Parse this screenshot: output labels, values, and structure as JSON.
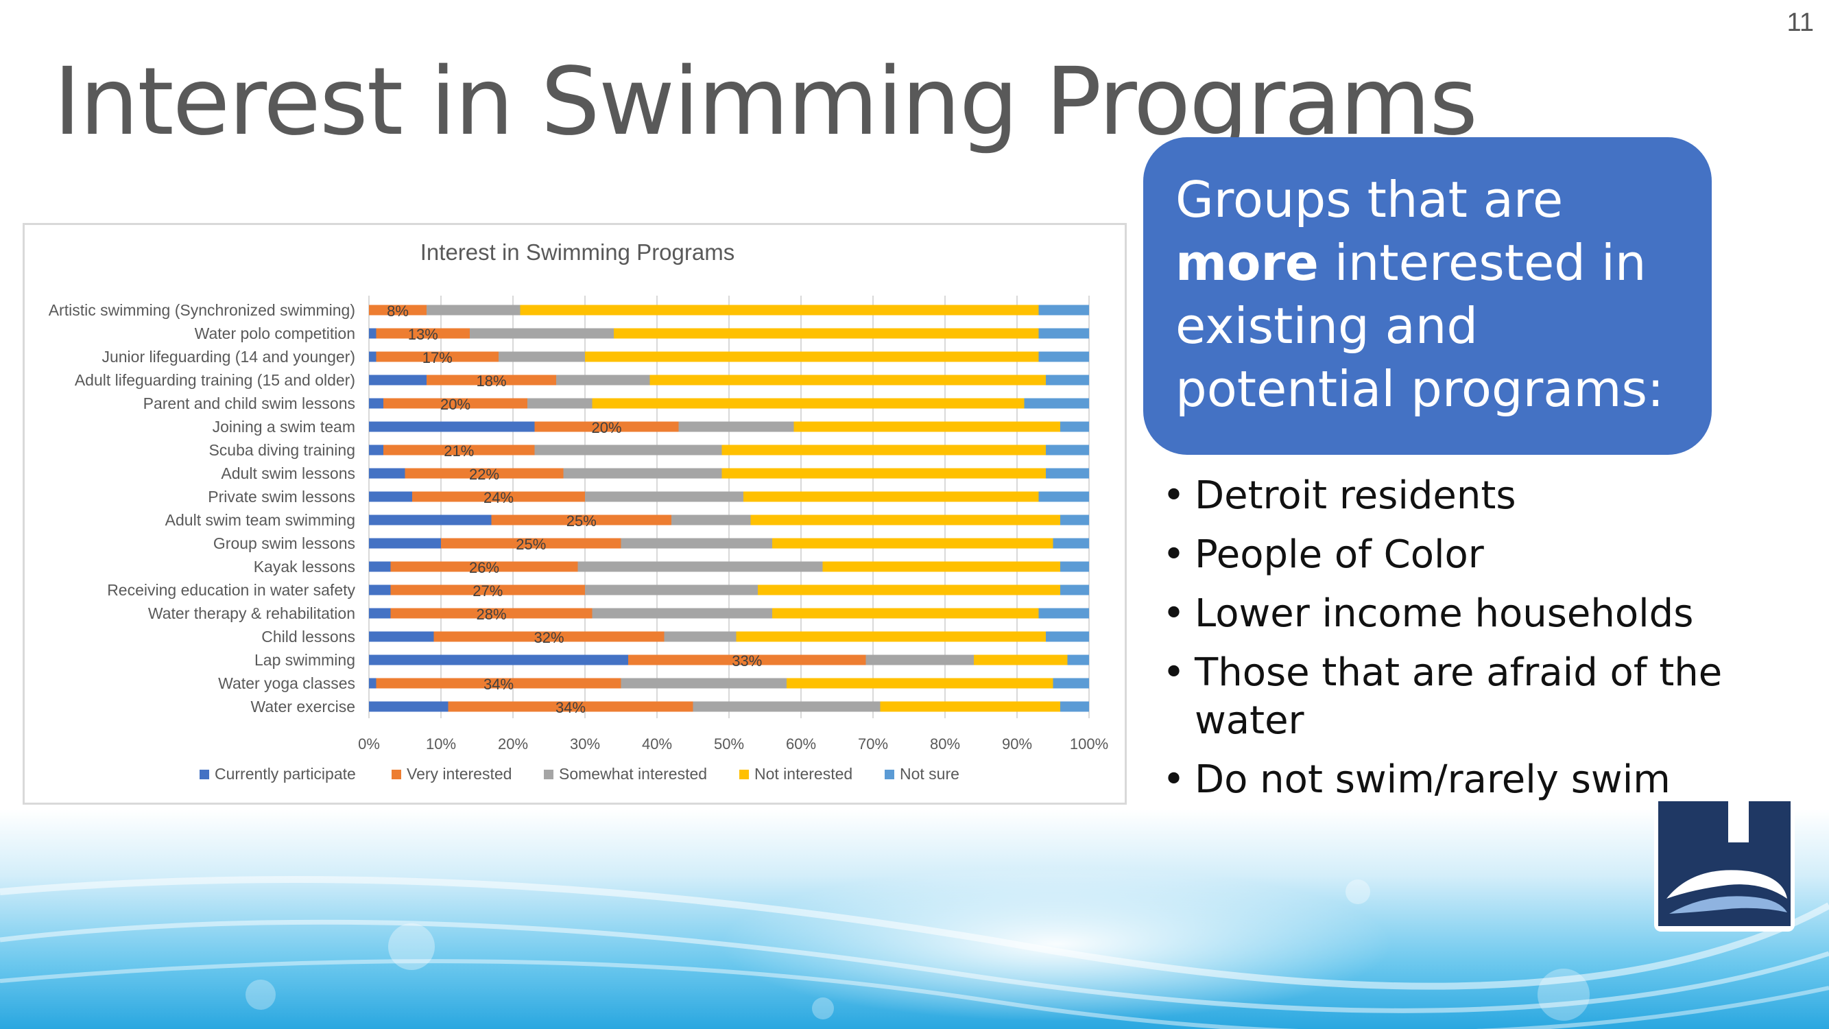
{
  "slide": {
    "number": "11",
    "title": "Interest in Swimming Programs"
  },
  "callout": {
    "text_before": "Groups that are ",
    "text_bold": "more",
    "text_after": " interested in existing and potential programs:"
  },
  "bullets": [
    "Detroit residents",
    "People of Color",
    "Lower income households",
    "Those that are afraid of the water",
    "Do not swim/rarely swim"
  ],
  "colors": {
    "currently": "#4472c4",
    "very": "#ed7d31",
    "somewhat": "#a5a5a5",
    "not_interested": "#ffc000",
    "not_sure": "#5b9bd5",
    "callout_bg": "#4472c4",
    "logo_navy": "#1f3864"
  },
  "logo": {
    "icon": "organization-logo-icon"
  },
  "chart_data": {
    "type": "bar",
    "orientation": "horizontal",
    "stacked": true,
    "title": "Interest in Swimming Programs",
    "categories": [
      "Artistic swimming (Synchronized swimming)",
      "Water polo competition",
      "Junior lifeguarding (14 and younger)",
      "Adult lifeguarding training (15 and older)",
      "Parent and child swim lessons",
      "Joining a swim team",
      "Scuba diving training",
      "Adult swim lessons",
      "Private swim lessons",
      "Adult swim team swimming",
      "Group swim lessons",
      "Kayak lessons",
      "Receiving education in water safety",
      "Water therapy & rehabilitation",
      "Child lessons",
      "Lap swimming",
      "Water yoga classes",
      "Water exercise"
    ],
    "series": [
      {
        "name": "Currently participate",
        "values": [
          0,
          1,
          1,
          8,
          2,
          23,
          2,
          5,
          6,
          17,
          10,
          3,
          3,
          3,
          9,
          36,
          1,
          11
        ]
      },
      {
        "name": "Very interested",
        "values": [
          8,
          13,
          17,
          18,
          20,
          20,
          21,
          22,
          24,
          25,
          25,
          26,
          27,
          28,
          32,
          33,
          34,
          34
        ]
      },
      {
        "name": "Somewhat interested",
        "values": [
          13,
          20,
          12,
          13,
          9,
          16,
          26,
          22,
          22,
          11,
          21,
          34,
          24,
          25,
          10,
          15,
          23,
          26
        ]
      },
      {
        "name": "Not interested",
        "values": [
          72,
          59,
          63,
          55,
          60,
          37,
          45,
          45,
          41,
          43,
          39,
          33,
          42,
          37,
          43,
          13,
          37,
          25
        ]
      },
      {
        "name": "Not  sure",
        "values": [
          7,
          7,
          7,
          6,
          9,
          4,
          6,
          6,
          7,
          4,
          5,
          4,
          4,
          7,
          6,
          3,
          5,
          4
        ]
      }
    ],
    "data_labels": [
      "8%",
      "13%",
      "17%",
      "18%",
      "20%",
      "20%",
      "21%",
      "22%",
      "24%",
      "25%",
      "25%",
      "26%",
      "27%",
      "28%",
      "32%",
      "33%",
      "34%",
      "34%"
    ],
    "x_ticks": [
      "0%",
      "10%",
      "20%",
      "30%",
      "40%",
      "50%",
      "60%",
      "70%",
      "80%",
      "90%",
      "100%"
    ],
    "xlim": [
      0,
      100
    ],
    "xlabel": "",
    "ylabel": "",
    "grid": true,
    "legend": "bottom"
  }
}
